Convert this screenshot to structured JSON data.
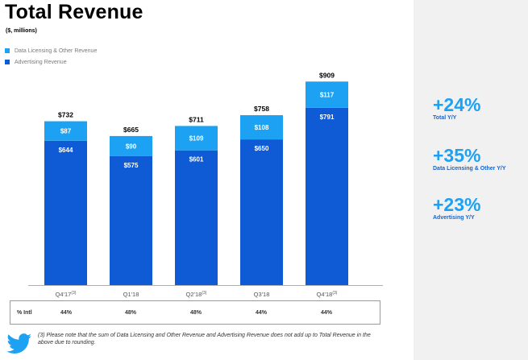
{
  "title": "Total Revenue",
  "subtitle": "($, millions)",
  "legend": {
    "data_licensing": "Data Licensing & Other Revenue",
    "advertising": "Advertising Revenue"
  },
  "colors": {
    "data_licensing": "#1da1f2",
    "advertising": "#0f5bd6",
    "stat_value": "#1da1f2",
    "stat_label": "#1a66c8"
  },
  "chart_data": {
    "type": "bar",
    "stacked": true,
    "categories": [
      "Q4'17",
      "Q1'18",
      "Q2'18",
      "Q3'18",
      "Q4'18"
    ],
    "category_superscripts": [
      "(3)",
      "",
      "(3)",
      "",
      "(3)"
    ],
    "series": [
      {
        "name": "Advertising Revenue",
        "values": [
          644,
          575,
          601,
          650,
          791
        ]
      },
      {
        "name": "Data Licensing & Other Revenue",
        "values": [
          87,
          90,
          109,
          108,
          117
        ]
      }
    ],
    "totals": [
      732,
      665,
      711,
      758,
      909
    ],
    "total_labels": [
      "$732",
      "$665",
      "$711",
      "$758",
      "$909"
    ],
    "advertising_labels": [
      "$644",
      "$575",
      "$601",
      "$650",
      "$791"
    ],
    "data_licensing_labels": [
      "$87",
      "$90",
      "$109",
      "$108",
      "$117"
    ],
    "ylim": [
      0,
      1000
    ],
    "title": "Total Revenue",
    "xlabel": "",
    "ylabel": ""
  },
  "intl_row": {
    "label": "% Intl",
    "values": [
      "44%",
      "48%",
      "48%",
      "44%",
      "44%"
    ]
  },
  "stats": [
    {
      "value": "+24%",
      "label": "Total Y/Y"
    },
    {
      "value": "+35%",
      "label": "Data Licensing & Other Y/Y"
    },
    {
      "value": "+23%",
      "label": "Advertising Y/Y"
    }
  ],
  "footnote": "(3) Please note that the sum of Data Licensing and Other Revenue and Advertising Revenue does not add up to Total Revenue in the above due to rounding.",
  "icons": {
    "logo": "twitter-bird-icon"
  }
}
